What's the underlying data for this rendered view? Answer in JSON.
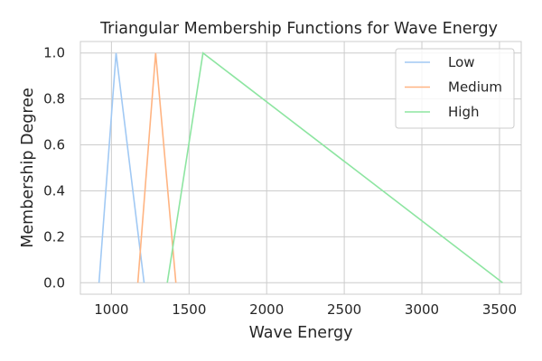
{
  "chart_data": {
    "type": "line",
    "title": "Triangular Membership Functions for Wave Energy",
    "xlabel": "Wave Energy",
    "ylabel": "Membership Degree",
    "xlim": [
      800,
      3640
    ],
    "ylim": [
      -0.05,
      1.05
    ],
    "xticks": [
      1000,
      1500,
      2000,
      2500,
      3000,
      3500
    ],
    "yticks": [
      0.0,
      0.2,
      0.4,
      0.6,
      0.8,
      1.0
    ],
    "xtick_labels": [
      "1000",
      "1500",
      "2000",
      "2500",
      "3000",
      "3500"
    ],
    "ytick_labels": [
      "0.0",
      "0.2",
      "0.4",
      "0.6",
      "0.8",
      "1.0"
    ],
    "grid": true,
    "legend_position": "top-right",
    "series": [
      {
        "name": "Low",
        "color": "#a1c9f4",
        "x": [
          920,
          1030,
          1210
        ],
        "y": [
          0,
          1,
          0
        ]
      },
      {
        "name": "Medium",
        "color": "#ffb482",
        "x": [
          1170,
          1285,
          1415
        ],
        "y": [
          0,
          1,
          0
        ]
      },
      {
        "name": "High",
        "color": "#8de5a1",
        "x": [
          1360,
          1590,
          3520
        ],
        "y": [
          0,
          1,
          0
        ]
      }
    ]
  }
}
